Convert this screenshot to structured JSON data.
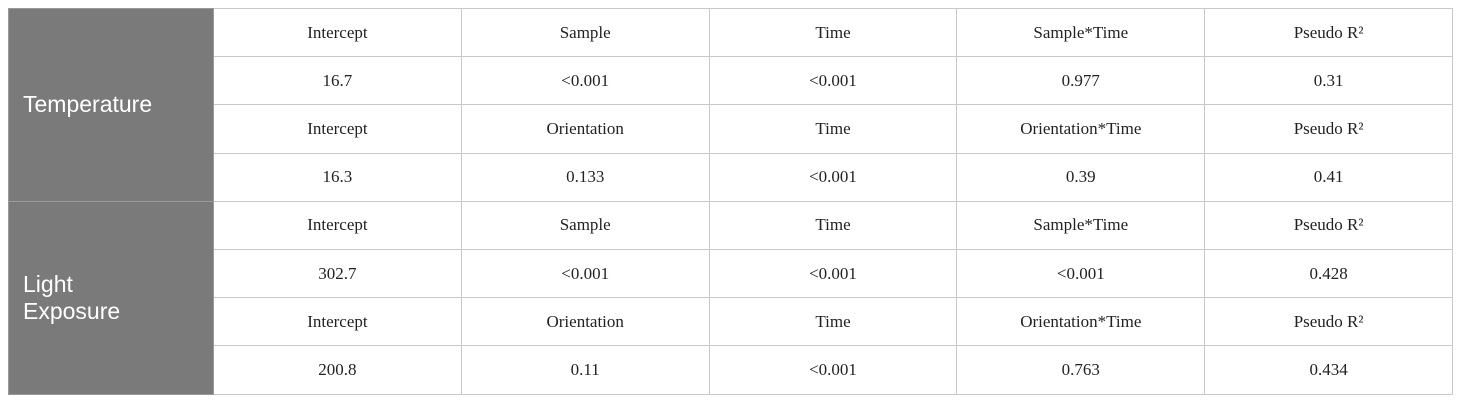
{
  "table": {
    "groups": [
      {
        "label": "Temperature",
        "rows": [
          [
            "Intercept",
            "Sample",
            "Time",
            "Sample*Time",
            "Pseudo R²"
          ],
          [
            "16.7",
            "<0.001",
            "<0.001",
            "0.977",
            "0.31"
          ],
          [
            "Intercept",
            "Orientation",
            "Time",
            "Orientation*Time",
            "Pseudo R²"
          ],
          [
            "16.3",
            "0.133",
            "<0.001",
            "0.39",
            "0.41"
          ]
        ]
      },
      {
        "label": "Light Exposure",
        "rows": [
          [
            "Intercept",
            "Sample",
            "Time",
            "Sample*Time",
            "Pseudo R²"
          ],
          [
            "302.7",
            "<0.001",
            "<0.001",
            "<0.001",
            "0.428"
          ],
          [
            "Intercept",
            "Orientation",
            "Time",
            "Orientation*Time",
            "Pseudo R²"
          ],
          [
            "200.8",
            "0.11",
            "<0.001",
            "0.763",
            "0.434"
          ]
        ]
      }
    ]
  }
}
